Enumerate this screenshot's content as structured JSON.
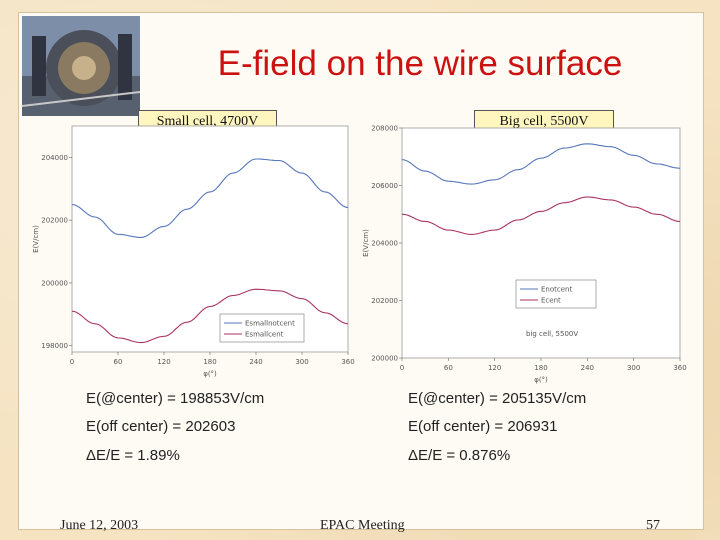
{
  "slide": {
    "title": "E-field on the wire surface",
    "footer_date": "June 12, 2003",
    "footer_event": "EPAC  Meeting",
    "footer_page": "57"
  },
  "panels": [
    {
      "label": "Small cell, 4700V",
      "stats": [
        "E(@center) = 198853V/cm",
        "E(off center) = 202603",
        "ΔE/E = 1.89%"
      ]
    },
    {
      "label": "Big cell, 5500V",
      "stats": [
        "E(@center) = 205135V/cm",
        "E(off center) = 206931",
        "ΔE/E = 0.876%"
      ]
    }
  ],
  "chart_data": [
    {
      "type": "line",
      "xlabel": "φ(°)",
      "ylabel": "E(V/cm)",
      "xlim": [
        0,
        360
      ],
      "ylim": [
        197800,
        205000
      ],
      "xticks": [
        0,
        60,
        120,
        180,
        240,
        300,
        360
      ],
      "yticks": [
        198000,
        200000,
        202000,
        204000
      ],
      "ytick_labels": [
        "198000",
        "200000",
        "202000",
        "204000"
      ],
      "legend": {
        "position": "bottom-right",
        "entries": [
          "Esmallnotcent",
          "Esmallcent"
        ]
      },
      "series": [
        {
          "name": "Esmallnotcent",
          "color": "#5577bb",
          "x": [
            0,
            30,
            60,
            90,
            120,
            150,
            180,
            210,
            240,
            270,
            300,
            330,
            360
          ],
          "y": [
            202500,
            202100,
            201550,
            201450,
            201800,
            202350,
            202900,
            203500,
            203950,
            203900,
            203500,
            202900,
            202400
          ]
        },
        {
          "name": "Esmallcent",
          "color": "#aa3366",
          "x": [
            0,
            30,
            60,
            90,
            120,
            150,
            180,
            210,
            240,
            270,
            300,
            330,
            360
          ],
          "y": [
            199100,
            198700,
            198250,
            198100,
            198300,
            198750,
            199250,
            199600,
            199800,
            199750,
            199500,
            199050,
            198700
          ]
        }
      ]
    },
    {
      "type": "line",
      "xlabel": "φ(°)",
      "ylabel": "E(V/cm)",
      "xlim": [
        0,
        360
      ],
      "ylim": [
        200000,
        208000
      ],
      "xticks": [
        0,
        60,
        120,
        180,
        240,
        300,
        360
      ],
      "yticks": [
        200000,
        202000,
        204000,
        206000,
        208000
      ],
      "ytick_labels": [
        "200000",
        "202000",
        "204000",
        "206000",
        "208000"
      ],
      "legend": {
        "position": "lower-right",
        "entries": [
          "Enotcent",
          "Ecent"
        ]
      },
      "annotation": "big cell, 5500V",
      "series": [
        {
          "name": "Enotcent",
          "color": "#5577bb",
          "x": [
            0,
            30,
            60,
            90,
            120,
            150,
            180,
            210,
            240,
            270,
            300,
            330,
            360
          ],
          "y": [
            206900,
            206500,
            206150,
            206050,
            206200,
            206550,
            206950,
            207300,
            207450,
            207350,
            207050,
            206750,
            206600
          ]
        },
        {
          "name": "Ecent",
          "color": "#aa3366",
          "x": [
            0,
            30,
            60,
            90,
            120,
            150,
            180,
            210,
            240,
            270,
            300,
            330,
            360
          ],
          "y": [
            205000,
            204750,
            204450,
            204300,
            204450,
            204800,
            205100,
            205400,
            205600,
            205500,
            205250,
            205000,
            204750
          ]
        }
      ]
    }
  ]
}
